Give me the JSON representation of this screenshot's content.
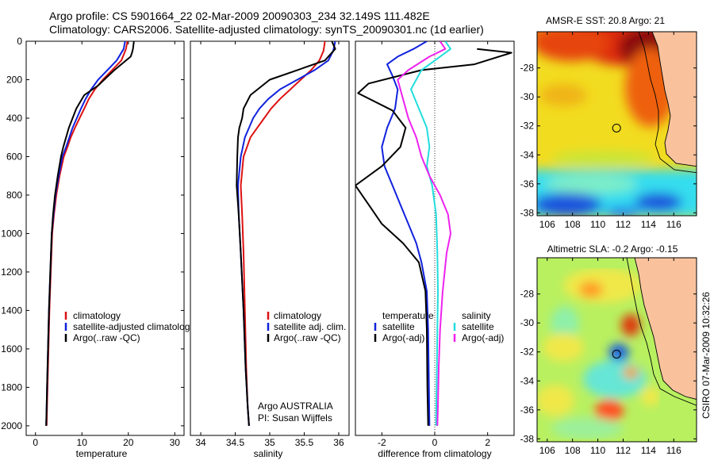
{
  "header": {
    "line1": "Argo profile: CS 5901664_22 02-Mar-2009 20090303_234 32.149S 111.482E",
    "line2": "Climatology: CARS2006. Satellite-adjusted climatology: synTS_20090301.nc (1d earlier)"
  },
  "credit": "CSIRO 07-Mar-2009 10:32:26",
  "float_notes": {
    "line1": "Argo AUSTRALIA",
    "line2": "PI: Susan Wijffels"
  },
  "colors": {
    "climatology": "#dd1111",
    "satellite": "#1122dd",
    "argo": "#000000",
    "sat_salinity": "#22dddd",
    "argo_salinity_diff": "#ee22ee",
    "land": "#f9c29d"
  },
  "chart_data": [
    {
      "type": "line",
      "xlabel": "temperature",
      "ylim": [
        2050,
        0
      ],
      "xlim": [
        -2,
        32
      ],
      "xticks": [
        "0",
        "10",
        "20",
        "30"
      ],
      "yticks": [
        "0",
        "200",
        "400",
        "600",
        "800",
        "1000",
        "1200",
        "1400",
        "1600",
        "1800",
        "2000"
      ],
      "legend": [
        "climatology",
        "satellite-adjusted climatology",
        "Argo(..raw -QC)"
      ],
      "series": [
        {
          "name": "climatology",
          "color": "#dd1111",
          "x": [
            19.8,
            19.5,
            18.5,
            16.5,
            14.5,
            12.8,
            11.5,
            10.5,
            9.5,
            8.5,
            7.6,
            6.9,
            6.1,
            5.2,
            4.5,
            4.0,
            3.6,
            3.3,
            3.0,
            2.8,
            2.6,
            2.5,
            2.4
          ],
          "y": [
            0,
            40,
            100,
            150,
            200,
            250,
            300,
            350,
            400,
            450,
            500,
            550,
            600,
            700,
            800,
            900,
            1000,
            1200,
            1400,
            1600,
            1800,
            1900,
            2000
          ]
        },
        {
          "name": "satellite-adjusted climatology",
          "color": "#1122dd",
          "x": [
            19.3,
            19.0,
            17.5,
            15.5,
            13.5,
            12.0,
            10.8,
            9.8,
            8.9,
            8.0,
            7.3,
            6.6,
            5.8,
            5.0,
            4.3,
            3.9,
            3.5,
            3.2,
            2.9,
            2.7,
            2.5,
            2.4,
            2.3
          ],
          "y": [
            0,
            40,
            100,
            150,
            200,
            250,
            300,
            350,
            400,
            450,
            500,
            550,
            600,
            700,
            800,
            900,
            1000,
            1200,
            1400,
            1600,
            1800,
            1900,
            2000
          ]
        },
        {
          "name": "Argo(..raw -QC)",
          "color": "#000000",
          "x": [
            21.2,
            21.0,
            20.8,
            20.5,
            17.0,
            13.5,
            10.5,
            8.8,
            8.0,
            7.2,
            6.6,
            6.0,
            5.5,
            4.8,
            4.2,
            3.8,
            3.5,
            3.2,
            2.9,
            2.7,
            2.5,
            2.4,
            2.3
          ],
          "y": [
            0,
            40,
            60,
            80,
            150,
            230,
            280,
            350,
            400,
            450,
            500,
            550,
            600,
            700,
            800,
            900,
            1000,
            1200,
            1400,
            1600,
            1800,
            1900,
            2000
          ]
        }
      ]
    },
    {
      "type": "line",
      "xlabel": "salinity",
      "ylim": [
        2050,
        0
      ],
      "xlim": [
        33.85,
        36.15
      ],
      "xticks": [
        "34",
        "34.5",
        "35",
        "35.5",
        "36"
      ],
      "legend": [
        "climatology",
        "satellite adj. clim.",
        "Argo(..raw -QC)"
      ],
      "series": [
        {
          "name": "climatology",
          "color": "#dd1111",
          "x": [
            35.8,
            35.78,
            35.72,
            35.6,
            35.45,
            35.3,
            35.15,
            35.02,
            34.92,
            34.82,
            34.72,
            34.62,
            34.58,
            34.6,
            34.62,
            34.64,
            34.66,
            34.68,
            34.7
          ],
          "y": [
            0,
            50,
            100,
            150,
            200,
            250,
            300,
            350,
            400,
            450,
            500,
            600,
            750,
            900,
            1100,
            1400,
            1700,
            1900,
            2000
          ]
        },
        {
          "name": "satellite adj. clim.",
          "color": "#1122dd",
          "x": [
            35.95,
            35.92,
            35.85,
            35.65,
            35.4,
            35.15,
            34.98,
            34.85,
            34.76,
            34.7,
            34.64,
            34.58,
            34.54,
            34.55,
            34.58,
            34.62,
            34.65,
            34.68,
            34.7
          ],
          "y": [
            0,
            50,
            100,
            150,
            200,
            250,
            300,
            350,
            400,
            450,
            500,
            600,
            750,
            900,
            1100,
            1400,
            1700,
            1900,
            2000
          ]
        },
        {
          "name": "Argo(..raw -QC)",
          "color": "#000000",
          "x": [
            35.9,
            35.95,
            35.8,
            35.4,
            35.0,
            34.72,
            34.62,
            34.6,
            34.56,
            34.54,
            34.53,
            34.52,
            34.55,
            34.58,
            34.62,
            34.65,
            34.68,
            34.7
          ],
          "y": [
            0,
            40,
            100,
            150,
            200,
            280,
            350,
            400,
            450,
            500,
            600,
            750,
            900,
            1100,
            1400,
            1700,
            1900,
            2000
          ]
        }
      ]
    },
    {
      "type": "line",
      "xlabel": "difference from climatology",
      "ylim": [
        2050,
        0
      ],
      "xlim": [
        -3,
        3
      ],
      "xticks": [
        "-2",
        "0",
        "2"
      ],
      "legend_temperature": [
        "temperature",
        "satellite",
        "Argo(-adj)"
      ],
      "legend_salinity": [
        "salinity",
        "satellite",
        "Argo(-adj)"
      ],
      "series": [
        {
          "name": "temperature satellite",
          "color": "#1122dd",
          "x": [
            -0.3,
            -0.8,
            -1.4,
            -1.8,
            -1.6,
            -1.4,
            -1.5,
            -1.8,
            -2.0,
            -1.9,
            -1.6,
            -1.3,
            -1.0,
            -0.7,
            -0.5,
            -0.3,
            -0.25,
            -0.22,
            -0.2
          ],
          "y": [
            0,
            40,
            80,
            120,
            180,
            250,
            350,
            450,
            550,
            650,
            750,
            850,
            950,
            1050,
            1150,
            1300,
            1500,
            1800,
            2000
          ]
        },
        {
          "name": "temperature Argo(-adj)",
          "color": "#000000",
          "x": [
            1.6,
            2.9,
            1.5,
            -0.5,
            -2.5,
            -2.9,
            -1.6,
            -1.1,
            -1.3,
            -2.0,
            -3.0,
            -2.5,
            -2.0,
            -1.2,
            -0.6,
            -0.35,
            -0.3,
            -0.28,
            -0.25
          ],
          "y": [
            40,
            60,
            120,
            150,
            220,
            270,
            360,
            450,
            550,
            650,
            750,
            850,
            950,
            1050,
            1150,
            1300,
            1500,
            1800,
            2000
          ]
        },
        {
          "name": "salinity satellite",
          "color": "#22dddd",
          "x": [
            0.4,
            0.6,
            0.2,
            -0.5,
            -0.9,
            -0.6,
            -0.3,
            -0.2,
            -0.3,
            -0.1,
            0.05,
            0.1,
            0.12,
            0.1,
            0.08,
            0.06,
            0.05
          ],
          "y": [
            0,
            40,
            80,
            150,
            250,
            350,
            450,
            550,
            650,
            750,
            900,
            1100,
            1300,
            1500,
            1700,
            1900,
            2000
          ]
        },
        {
          "name": "salinity Argo(-adj)",
          "color": "#ee22ee",
          "x": [
            0.2,
            0.4,
            -0.2,
            -1.0,
            -1.4,
            -1.2,
            -1.0,
            -0.7,
            -0.5,
            -0.2,
            0.2,
            0.5,
            0.6,
            0.45,
            0.3,
            0.2,
            0.15,
            0.12,
            0.1
          ],
          "y": [
            0,
            40,
            80,
            150,
            200,
            300,
            400,
            500,
            600,
            700,
            800,
            900,
            1000,
            1100,
            1300,
            1500,
            1700,
            1900,
            2000
          ]
        }
      ]
    },
    {
      "type": "heatmap",
      "title": "AMSR-E SST: 20.8 Argo: 21",
      "xlim": [
        105.2,
        117.8
      ],
      "ylim": [
        -38.2,
        -25.5
      ],
      "xticks": [
        "106",
        "108",
        "110",
        "112",
        "114",
        "116"
      ],
      "yticks": [
        "-28",
        "-30",
        "-32",
        "-34",
        "-36",
        "-38"
      ],
      "argo_position": [
        111.48,
        -32.15
      ]
    },
    {
      "type": "heatmap",
      "title": "Altimetric SLA: -0.2 Argo: -0.15",
      "xlim": [
        105.2,
        117.8
      ],
      "ylim": [
        -38.2,
        -25.5
      ],
      "xticks": [
        "106",
        "108",
        "110",
        "112",
        "114",
        "116"
      ],
      "yticks": [
        "-28",
        "-30",
        "-32",
        "-34",
        "-36",
        "-38"
      ],
      "argo_position": [
        111.48,
        -32.15
      ]
    }
  ]
}
